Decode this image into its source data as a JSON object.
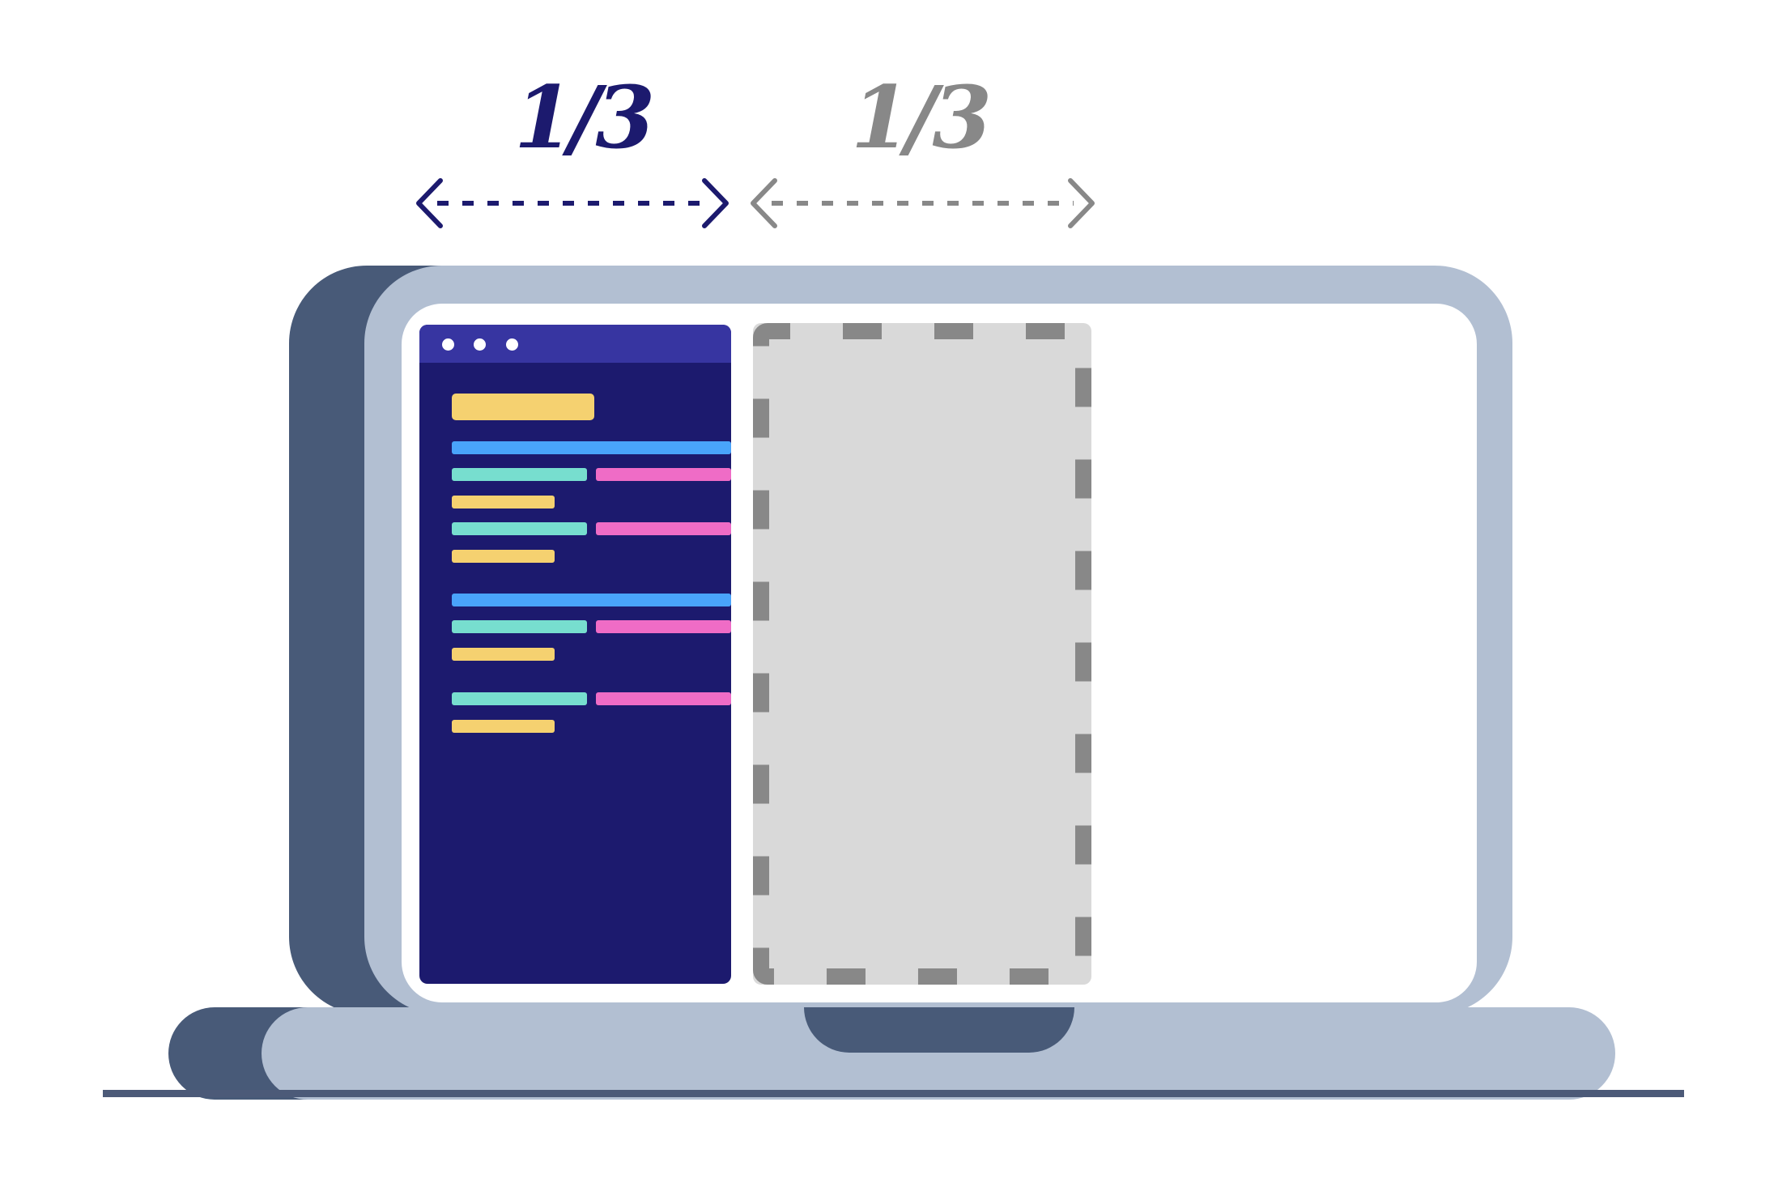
{
  "labels": {
    "left_fraction": "1/3",
    "right_fraction": "1/3"
  },
  "colors": {
    "accent_dark": "#1c1a6e",
    "accent_gray": "#888888",
    "laptop_body": "#b2bfd2",
    "laptop_shadow": "#485a78",
    "window_bg": "#1c1a6e",
    "window_titlebar": "#3735a1",
    "placeholder_bg": "#d9d9d9",
    "code_yellow": "#f5d170",
    "code_blue": "#49a4fb",
    "code_teal": "#77decf",
    "code_pink": "#ef6cc6"
  },
  "icons": {
    "left_arrow": "double-headed-arrow-icon",
    "right_arrow": "double-headed-arrow-icon"
  }
}
